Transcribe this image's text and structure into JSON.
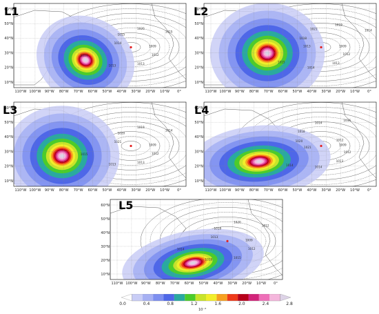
{
  "panels": [
    {
      "label": "L1",
      "isobars": [
        "1009",
        "1012",
        "1013",
        "1013",
        "1014",
        "1014",
        "1015",
        "1020",
        "1015"
      ]
    },
    {
      "label": "L2",
      "isobars": [
        "1009",
        "1012",
        "1013",
        "1014",
        "1015",
        "1013",
        "1018",
        "1021",
        "1019",
        "1014"
      ]
    },
    {
      "label": "L3",
      "isobars": [
        "1009",
        "1012",
        "1013",
        "1013",
        "1015",
        "1021",
        "1020",
        "1019",
        "1014"
      ]
    },
    {
      "label": "L4",
      "isobars": [
        "1009",
        "1012",
        "1013",
        "1014",
        "1014",
        "1021",
        "1020",
        "1018",
        "1014",
        "1016",
        "1012"
      ]
    },
    {
      "label": "L5",
      "isobars": [
        "1009",
        "1012",
        "1015",
        "1019",
        "1014",
        "1013",
        "1018",
        "1020",
        "1012"
      ]
    }
  ],
  "lat_labels": [
    "60°N",
    "50°N",
    "40°N",
    "30°N",
    "20°N",
    "10°N"
  ],
  "lon_labels": [
    "110°W",
    "100°W",
    "90°W",
    "80°W",
    "70°W",
    "60°W",
    "50°W",
    "40°W",
    "30°W",
    "20°W",
    "10°W",
    "0°"
  ],
  "colorbar": {
    "ticks": [
      "0.0",
      "0.4",
      "0.8",
      "1.2",
      "1.6",
      "2.0",
      "2.4",
      "2.8"
    ],
    "exponent": "10⁻³",
    "colors": [
      "#ffffff",
      "#c9cdf6",
      "#a6b0f3",
      "#7d8ff0",
      "#4e67e8",
      "#2aa9a0",
      "#4ccc2a",
      "#c8e42a",
      "#f2ee2a",
      "#f7a020",
      "#ee3a1a",
      "#b7001a",
      "#d2247a",
      "#ee6fb8",
      "#f4b6dc",
      "#ddd3e7"
    ]
  },
  "marker_color": "#e32222"
}
